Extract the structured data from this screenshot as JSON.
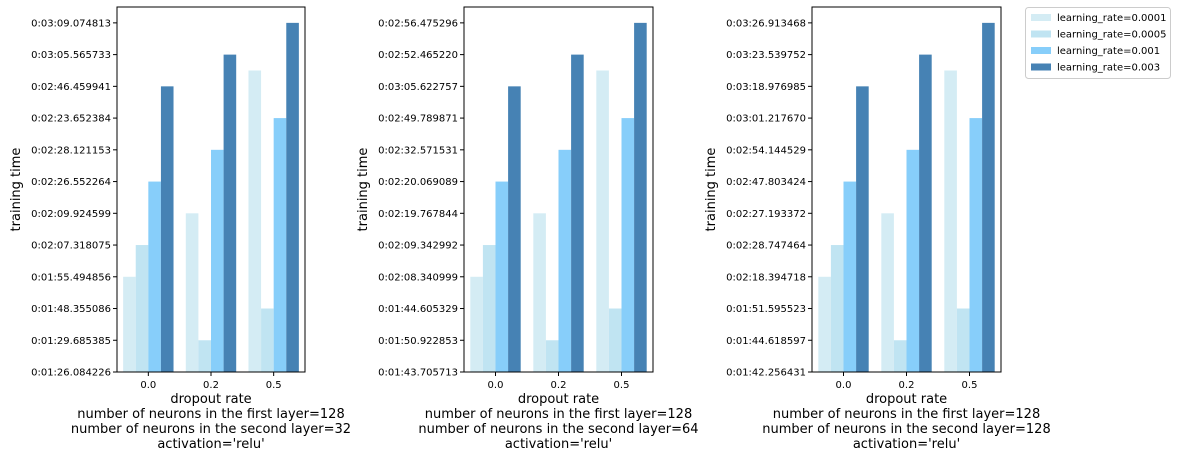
{
  "chart_data": [
    {
      "type": "bar",
      "categories": [
        "0.0",
        "0.2",
        "0.5"
      ],
      "xlabel": "dropout rate",
      "xlabel_lines": [
        "number of neurons in the first layer=128",
        "number of neurons in the second layer=32",
        "activation='relu'"
      ],
      "ylabel": "training time",
      "yticks": [
        "0:01:26.084226",
        "0:01:29.685385",
        "0:01:48.355086",
        "0:01:55.494856",
        "0:02:07.318075",
        "0:02:09.924599",
        "0:02:26.552264",
        "0:02:28.121153",
        "0:02:23.652384",
        "0:02:46.459941",
        "0:03:05.565733",
        "0:03:09.074813"
      ],
      "ylim": [
        0,
        11.5
      ],
      "series": [
        {
          "name": "learning_rate=0.0001",
          "values": [
            3.0,
            5.0,
            9.5
          ]
        },
        {
          "name": "learning_rate=0.0005",
          "values": [
            4.0,
            1.0,
            2.0
          ]
        },
        {
          "name": "learning_rate=0.001",
          "values": [
            6.0,
            7.0,
            8.0
          ]
        },
        {
          "name": "learning_rate=0.003",
          "values": [
            9.0,
            10.0,
            11.0
          ]
        }
      ],
      "legend": "none"
    },
    {
      "type": "bar",
      "categories": [
        "0.0",
        "0.2",
        "0.5"
      ],
      "xlabel": "dropout rate",
      "xlabel_lines": [
        "number of neurons in the first layer=128",
        "number of neurons in the second layer=64",
        "activation='relu'"
      ],
      "ylabel": "training time",
      "yticks": [
        "0:01:43.705713",
        "0:01:50.922853",
        "0:01:44.605329",
        "0:02:08.340999",
        "0:02:09.342992",
        "0:02:19.767844",
        "0:02:20.069089",
        "0:02:32.571531",
        "0:02:49.789871",
        "0:03:05.622757",
        "0:02:52.465220",
        "0:02:56.475296"
      ],
      "ylim": [
        0,
        11.5
      ],
      "series": [
        {
          "name": "learning_rate=0.0001",
          "values": [
            3.0,
            5.0,
            9.5
          ]
        },
        {
          "name": "learning_rate=0.0005",
          "values": [
            4.0,
            1.0,
            2.0
          ]
        },
        {
          "name": "learning_rate=0.001",
          "values": [
            6.0,
            7.0,
            8.0
          ]
        },
        {
          "name": "learning_rate=0.003",
          "values": [
            9.0,
            10.0,
            11.0
          ]
        }
      ],
      "legend": "none"
    },
    {
      "type": "bar",
      "categories": [
        "0.0",
        "0.2",
        "0.5"
      ],
      "xlabel": "dropout rate",
      "xlabel_lines": [
        "number of neurons in the first layer=128",
        "number of neurons in the second layer=128",
        "activation='relu'"
      ],
      "ylabel": "training time",
      "yticks": [
        "0:01:42.256431",
        "0:01:44.618597",
        "0:01:51.595523",
        "0:02:18.394718",
        "0:02:28.747464",
        "0:02:27.193372",
        "0:02:47.803424",
        "0:02:54.144529",
        "0:03:01.217670",
        "0:03:18.976985",
        "0:03:23.539752",
        "0:03:26.913468"
      ],
      "ylim": [
        0,
        11.5
      ],
      "series": [
        {
          "name": "learning_rate=0.0001",
          "values": [
            3.0,
            5.0,
            9.5
          ]
        },
        {
          "name": "learning_rate=0.0005",
          "values": [
            4.0,
            1.0,
            2.0
          ]
        },
        {
          "name": "learning_rate=0.001",
          "values": [
            6.0,
            7.0,
            8.0
          ]
        },
        {
          "name": "learning_rate=0.003",
          "values": [
            9.0,
            10.0,
            11.0
          ]
        }
      ],
      "legend": "outside-top-right"
    }
  ],
  "colors": [
    "#d4ecf4",
    "#c0e4f2",
    "#87cefa",
    "#4682b4"
  ],
  "legend_entries": [
    "learning_rate=0.0001",
    "learning_rate=0.0005",
    "learning_rate=0.001",
    "learning_rate=0.003"
  ]
}
